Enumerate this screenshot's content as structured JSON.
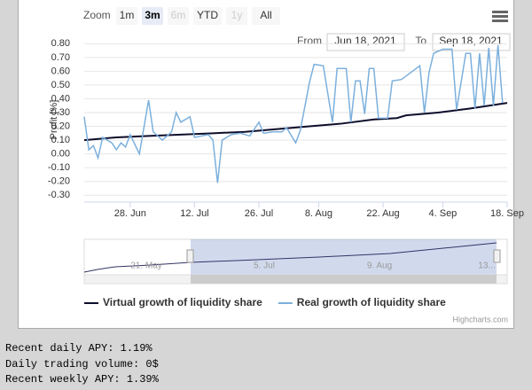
{
  "range_selector": {
    "zoom_label": "Zoom",
    "buttons": [
      "1m",
      "3m",
      "6m",
      "YTD",
      "1y",
      "All"
    ],
    "selected": 1,
    "disabled": [
      2,
      4
    ],
    "from_label": "From",
    "from": "Jun 18, 2021",
    "to_label": "To",
    "to": "Sep 18, 2021"
  },
  "chart_data": {
    "type": "line",
    "y_title": "Profit [%]",
    "xlim": [
      "2021-06-18",
      "2021-09-18"
    ],
    "xticks": [
      {
        "value": "2021-06-28",
        "label": "28. Jun"
      },
      {
        "value": "2021-07-12",
        "label": "12. Jul"
      },
      {
        "value": "2021-07-26",
        "label": "26. Jul"
      },
      {
        "value": "2021-08-08",
        "label": "8. Aug"
      },
      {
        "value": "2021-08-22",
        "label": "22. Aug"
      },
      {
        "value": "2021-09-04",
        "label": "4. Sep"
      },
      {
        "value": "2021-09-18",
        "label": "18. Sep"
      }
    ],
    "ylim": [
      -0.35,
      0.86
    ],
    "yticks": [
      {
        "value": -0.3,
        "label": "-0.30"
      },
      {
        "value": -0.2,
        "label": "-0.20"
      },
      {
        "value": -0.1,
        "label": "-0.10"
      },
      {
        "value": 0,
        "label": "0.00"
      },
      {
        "value": 0.1,
        "label": "0.10"
      },
      {
        "value": 0.2,
        "label": "0.20"
      },
      {
        "value": 0.3,
        "label": "0.30"
      },
      {
        "value": 0.4,
        "label": "0.40"
      },
      {
        "value": 0.5,
        "label": "0.50"
      },
      {
        "value": 0.6,
        "label": "0.60"
      },
      {
        "value": 0.7,
        "label": "0.70"
      },
      {
        "value": 0.8,
        "label": "0.80"
      }
    ],
    "grid": true,
    "series": [
      {
        "name": "Virtual growth of liquidity share",
        "color": "#0d0d2b",
        "width": 2,
        "x": [
          "2021-06-18",
          "2021-06-25",
          "2021-07-02",
          "2021-07-09",
          "2021-07-16",
          "2021-07-23",
          "2021-07-30",
          "2021-08-06",
          "2021-08-13",
          "2021-08-20",
          "2021-08-25",
          "2021-08-27",
          "2021-09-03",
          "2021-09-10",
          "2021-09-18"
        ],
        "values": [
          0.1,
          0.12,
          0.13,
          0.14,
          0.15,
          0.16,
          0.18,
          0.2,
          0.22,
          0.25,
          0.26,
          0.28,
          0.3,
          0.33,
          0.37
        ]
      },
      {
        "name": "Real growth of liquidity share",
        "color": "#7cb0dd",
        "width": 1.5,
        "x": [
          "2021-06-18",
          "2021-06-19",
          "2021-06-20",
          "2021-06-21",
          "2021-06-22",
          "2021-06-24",
          "2021-06-25",
          "2021-06-26",
          "2021-06-27",
          "2021-06-28",
          "2021-06-30",
          "2021-07-02",
          "2021-07-03",
          "2021-07-05",
          "2021-07-07",
          "2021-07-08",
          "2021-07-09",
          "2021-07-11",
          "2021-07-12",
          "2021-07-15",
          "2021-07-16",
          "2021-07-17",
          "2021-07-18",
          "2021-07-20",
          "2021-07-22",
          "2021-07-24",
          "2021-07-26",
          "2021-07-27",
          "2021-07-29",
          "2021-07-31",
          "2021-08-01",
          "2021-08-03",
          "2021-08-04",
          "2021-08-06",
          "2021-08-07",
          "2021-08-09",
          "2021-08-11",
          "2021-08-12",
          "2021-08-14",
          "2021-08-15",
          "2021-08-16",
          "2021-08-17",
          "2021-08-18",
          "2021-08-19",
          "2021-08-20",
          "2021-08-21",
          "2021-08-23",
          "2021-08-24",
          "2021-08-26",
          "2021-08-28",
          "2021-08-30",
          "2021-08-31",
          "2021-09-01",
          "2021-09-02",
          "2021-09-04",
          "2021-09-06",
          "2021-09-07",
          "2021-09-09",
          "2021-09-10",
          "2021-09-11",
          "2021-09-12",
          "2021-09-13",
          "2021-09-14",
          "2021-09-15",
          "2021-09-16",
          "2021-09-17"
        ],
        "values": [
          0.27,
          0.03,
          0.06,
          -0.03,
          0.12,
          0.08,
          0.03,
          0.08,
          0.05,
          0.14,
          0.0,
          0.39,
          0.16,
          0.1,
          0.16,
          0.3,
          0.23,
          0.27,
          0.12,
          0.14,
          0.1,
          -0.21,
          0.1,
          0.14,
          0.15,
          0.13,
          0.23,
          0.15,
          0.16,
          0.16,
          0.19,
          0.08,
          0.17,
          0.52,
          0.65,
          0.64,
          0.23,
          0.62,
          0.62,
          0.23,
          0.53,
          0.53,
          0.29,
          0.62,
          0.62,
          0.26,
          0.26,
          0.53,
          0.54,
          0.59,
          0.64,
          0.3,
          0.59,
          0.73,
          0.76,
          0.76,
          0.32,
          0.73,
          0.73,
          0.33,
          0.73,
          0.35,
          0.77,
          0.35,
          0.79,
          0.37
        ]
      }
    ],
    "credit": "Highcharts.com"
  },
  "navigator": {
    "labels": [
      "21. May",
      "5. Jul",
      "9. Aug",
      "13..."
    ]
  },
  "stats": [
    "Recent daily APY: 1.19%",
    "Daily trading volume: 0$",
    "Recent weekly APY: 1.39%"
  ]
}
